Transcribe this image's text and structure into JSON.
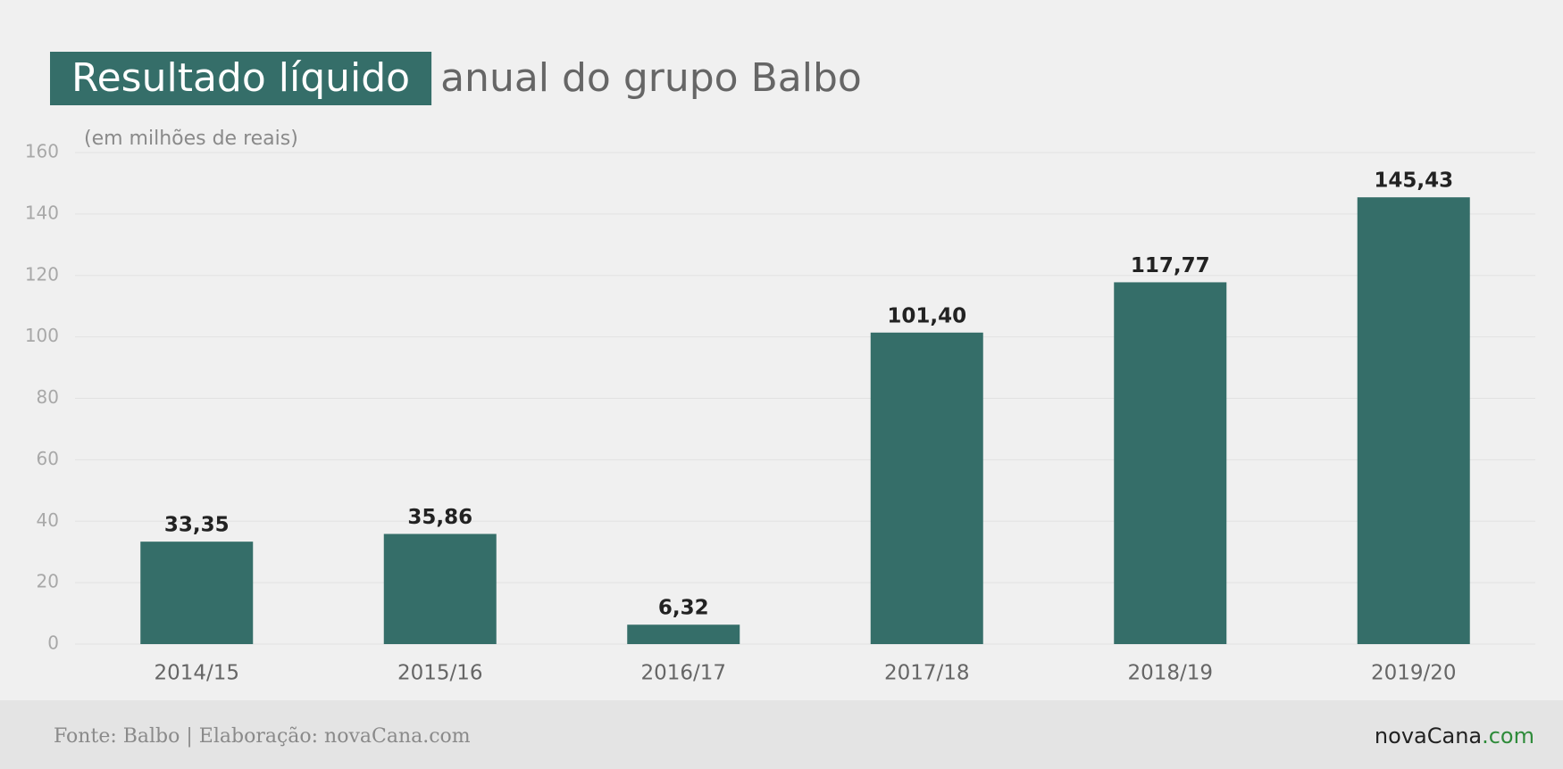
{
  "chart_data": {
    "type": "bar",
    "title_highlight": "Resultado líquido",
    "title": "anual do grupo Balbo",
    "subtitle": "(em milhões de reais)",
    "categories": [
      "2014/15",
      "2015/16",
      "2016/17",
      "2017/18",
      "2018/19",
      "2019/20"
    ],
    "values": [
      33.35,
      35.86,
      6.32,
      101.4,
      117.77,
      145.43
    ],
    "value_labels": [
      "33,35",
      "35,86",
      "6,32",
      "101,40",
      "117,77",
      "145,43"
    ],
    "color": "#356e69",
    "ylim": [
      0,
      160
    ],
    "yticks": [
      0,
      20,
      40,
      60,
      80,
      100,
      120,
      140,
      160
    ],
    "grid": true,
    "source": "Fonte: Balbo | Elaboração: novaCana.com",
    "logo": [
      "novaCana",
      ".com"
    ]
  }
}
